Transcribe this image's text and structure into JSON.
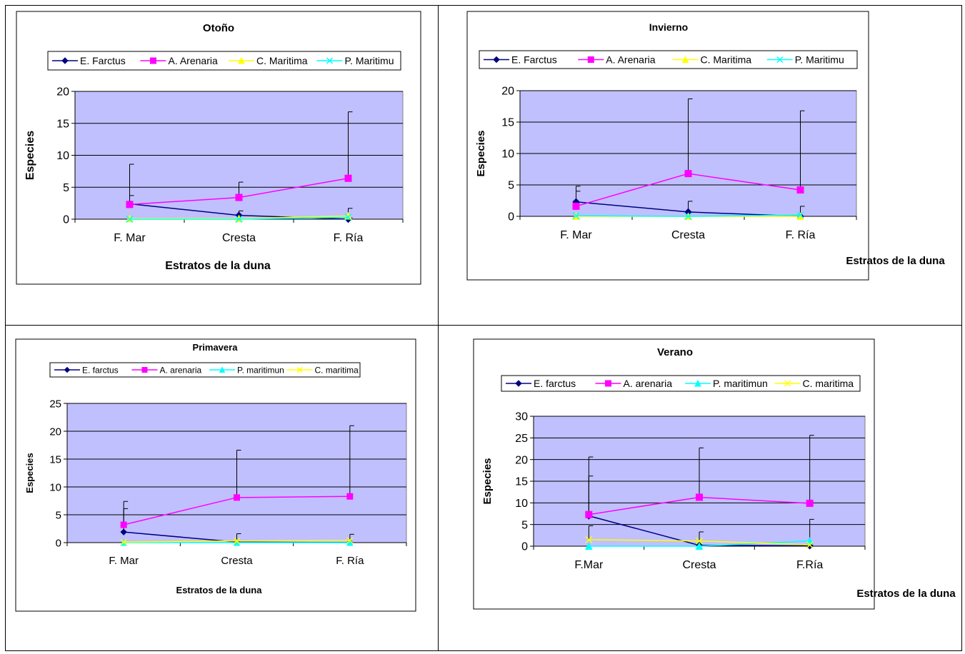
{
  "chart_data": [
    {
      "type": "line",
      "title": "Otoño",
      "xlabel": "Estratos de la duna",
      "ylabel": "Especies",
      "categories": [
        "F. Mar",
        "Cresta",
        "F. Ría"
      ],
      "ylim": [
        0,
        20
      ],
      "yticks": [
        0,
        5,
        10,
        15,
        20
      ],
      "grid": true,
      "legend_position": "top",
      "series": [
        {
          "name": "E. Farctus",
          "values": [
            2.4,
            0.6,
            0
          ],
          "error": [
            1.3,
            0.7,
            0.2
          ],
          "color": "#000080",
          "marker": "diamond"
        },
        {
          "name": "A. Arenaria",
          "values": [
            2.3,
            3.4,
            6.4
          ],
          "error": [
            6.3,
            2.4,
            10.4
          ],
          "color": "#FF00FF",
          "marker": "square"
        },
        {
          "name": "C. Maritima",
          "values": [
            0.1,
            0.1,
            0.5
          ],
          "error": [
            0,
            0,
            0
          ],
          "color": "#FFFF00",
          "marker": "triangle"
        },
        {
          "name": "P. Maritimu",
          "values": [
            0,
            0,
            0.3
          ],
          "error": [
            0,
            0,
            1.4
          ],
          "color": "#00FFFF",
          "marker": "x"
        }
      ]
    },
    {
      "type": "line",
      "title": "Invierno",
      "xlabel": "Estratos de la duna",
      "ylabel": "Especies",
      "categories": [
        "F. Mar",
        "Cresta",
        "F. Ría"
      ],
      "ylim": [
        0,
        20
      ],
      "yticks": [
        0,
        5,
        10,
        15,
        20
      ],
      "grid": true,
      "legend_position": "top",
      "series": [
        {
          "name": "E. Farctus",
          "values": [
            2.3,
            0.7,
            0
          ],
          "error": [
            2.5,
            1.7,
            1.6
          ],
          "color": "#000080",
          "marker": "diamond"
        },
        {
          "name": "A. Arenaria",
          "values": [
            1.6,
            6.8,
            4.2
          ],
          "error": [
            2.4,
            11.9,
            12.6
          ],
          "color": "#FF00FF",
          "marker": "square"
        },
        {
          "name": "C. Maritima",
          "values": [
            0,
            0,
            0
          ],
          "error": [
            0,
            0,
            0
          ],
          "color": "#FFFF00",
          "marker": "triangle"
        },
        {
          "name": "P. Maritimu",
          "values": [
            0.1,
            0,
            0.2
          ],
          "error": [
            0,
            0,
            0
          ],
          "color": "#00FFFF",
          "marker": "x"
        }
      ]
    },
    {
      "type": "line",
      "title": "Primavera",
      "xlabel": "Estratos de la duna",
      "ylabel": "Especies",
      "categories": [
        "F. Mar",
        "Cresta",
        "F. Ría"
      ],
      "ylim": [
        0,
        25
      ],
      "yticks": [
        0,
        5,
        10,
        15,
        20,
        25
      ],
      "grid": true,
      "legend_position": "top",
      "series": [
        {
          "name": "E. farctus",
          "values": [
            1.9,
            0.1,
            0
          ],
          "error": [
            4.2,
            1.5,
            1.5
          ],
          "color": "#000080",
          "marker": "diamond"
        },
        {
          "name": "A. arenaria",
          "values": [
            3.2,
            8.1,
            8.3
          ],
          "error": [
            4.2,
            8.5,
            12.7
          ],
          "color": "#FF00FF",
          "marker": "square"
        },
        {
          "name": "P. maritimun",
          "values": [
            0,
            0,
            0
          ],
          "error": [
            0,
            0,
            0
          ],
          "color": "#00FFFF",
          "marker": "triangle"
        },
        {
          "name": "C. maritima",
          "values": [
            0.1,
            0.3,
            0.4
          ],
          "error": [
            0,
            0,
            0
          ],
          "color": "#FFFF00",
          "marker": "x"
        }
      ]
    },
    {
      "type": "line",
      "title": "Verano",
      "xlabel": "Estratos de la duna",
      "ylabel": "Especies",
      "categories": [
        "F.Mar",
        "Cresta",
        "F.Ría"
      ],
      "ylim": [
        0,
        30
      ],
      "yticks": [
        0,
        5,
        10,
        15,
        20,
        25,
        30
      ],
      "grid": true,
      "legend_position": "top",
      "series": [
        {
          "name": "E. farctus",
          "values": [
            7,
            0.2,
            0.1
          ],
          "error": [
            9.2,
            3.1,
            6.1
          ],
          "color": "#000080",
          "marker": "diamond"
        },
        {
          "name": "A. arenaria",
          "values": [
            7.3,
            11.3,
            9.9
          ],
          "error": [
            13.3,
            11.4,
            15.7
          ],
          "color": "#FF00FF",
          "marker": "square"
        },
        {
          "name": "P. maritimun",
          "values": [
            0,
            0,
            1.2
          ],
          "error": [
            0,
            0,
            0
          ],
          "color": "#00FFFF",
          "marker": "triangle"
        },
        {
          "name": "C. maritima",
          "values": [
            1.5,
            1.2,
            0.3
          ],
          "error": [
            3.2,
            0,
            0
          ],
          "color": "#FFFF00",
          "marker": "x"
        }
      ]
    }
  ]
}
